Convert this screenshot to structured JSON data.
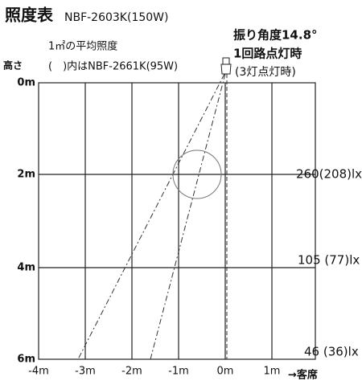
{
  "header": {
    "title": "照度表",
    "model": "NBF-2603K(150W)"
  },
  "notes": {
    "average": "1㎡の平均照度",
    "height": "高さ",
    "alt_model": "(　)内はNBF-2661K(95W)"
  },
  "beam": {
    "angle": "振り角度14.8°",
    "circuit": "1回路点灯時",
    "lamps": "(3灯点灯時)"
  },
  "y_labels": [
    "0m",
    "2m",
    "4m",
    "6m"
  ],
  "x_labels": [
    "-4m",
    "-3m",
    "-2m",
    "-1m",
    "0m",
    "1m"
  ],
  "x_direction": "→客席",
  "illuminance": [
    "260(208)lx",
    "105 (77)lx",
    "46 (36)lx"
  ]
}
